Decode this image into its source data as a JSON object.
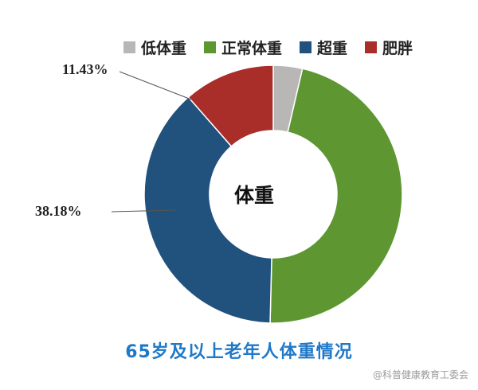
{
  "chart_data": {
    "type": "pie",
    "subtype": "donut",
    "title": "65岁及以上老年人体重情况",
    "center_label": "体重",
    "legend_position": "top",
    "series": [
      {
        "name": "低体重",
        "value": 3.64,
        "color": "#b9b6b6"
      },
      {
        "name": "正常体重",
        "value": 46.75,
        "color": "#5e9732"
      },
      {
        "name": "超重",
        "value": 38.18,
        "color": "#21517d"
      },
      {
        "name": "肥胖",
        "value": 11.43,
        "color": "#a92e2a"
      }
    ],
    "data_labels": [
      "11.43%",
      "38.18%"
    ]
  },
  "watermark": "@科普健康教育工委会"
}
